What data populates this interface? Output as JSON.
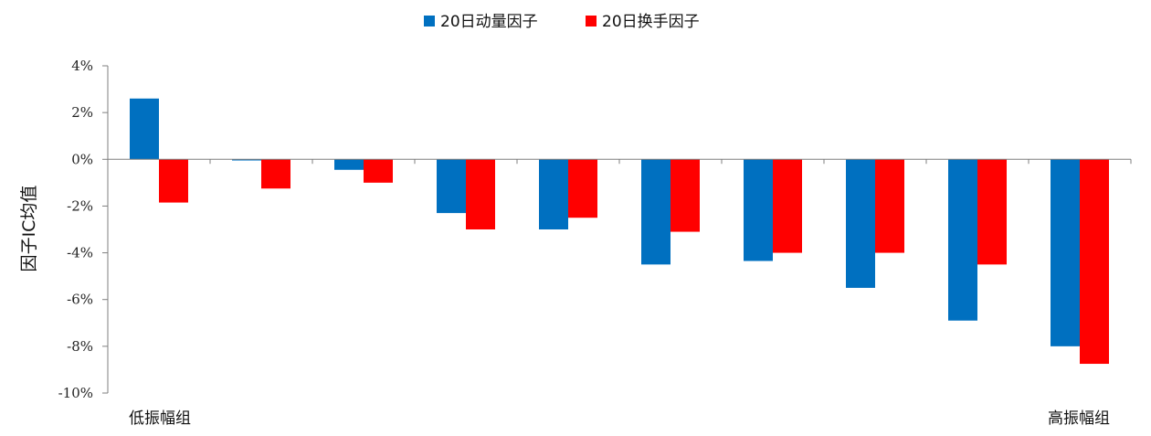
{
  "chart_data": {
    "type": "bar",
    "title": "",
    "xlabel": "",
    "ylabel": "因子IC均值",
    "ylim": [
      -10,
      4
    ],
    "yticks": [
      4,
      2,
      0,
      -2,
      -4,
      -6,
      -8,
      -10
    ],
    "ytick_labels": [
      "4%",
      "2%",
      "0%",
      "-2%",
      "-4%",
      "-6%",
      "-8%",
      "-10%"
    ],
    "categories": [
      "低振幅组",
      "",
      "",
      "",
      "",
      "",
      "",
      "",
      "",
      "高振幅组"
    ],
    "series": [
      {
        "name": "20日动量因子",
        "color": "#0070C0",
        "values": [
          2.6,
          -0.05,
          -0.45,
          -2.3,
          -3.0,
          -4.5,
          -4.35,
          -5.5,
          -6.9,
          -8.0
        ]
      },
      {
        "name": "20日换手因子",
        "color": "#FF0000",
        "values": [
          -1.85,
          -1.25,
          -1.0,
          -3.0,
          -2.5,
          -3.1,
          -4.0,
          -4.0,
          -4.5,
          -8.75
        ]
      }
    ],
    "legend_position": "top-center",
    "grid": false
  }
}
